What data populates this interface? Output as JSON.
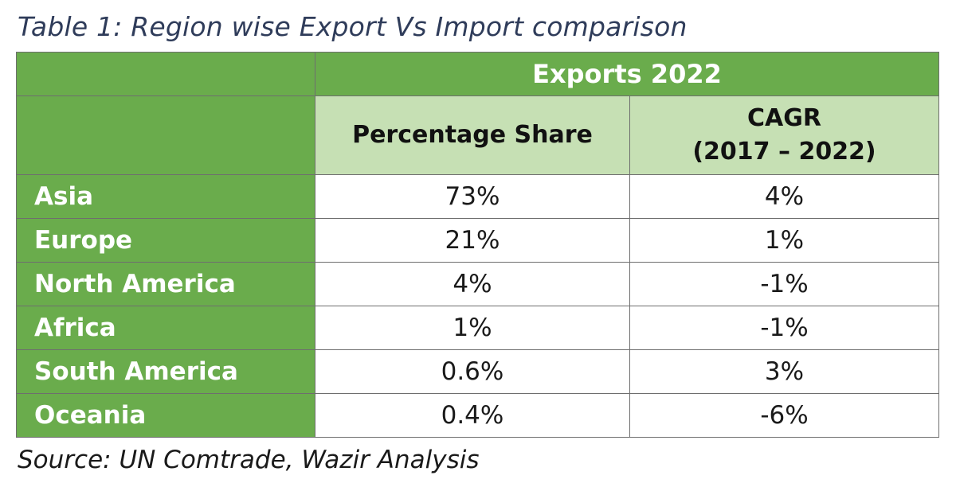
{
  "caption": "Table 1: Region wise Export Vs Import comparison",
  "table": {
    "group_header": "Exports 2022",
    "columns": {
      "share": "Percentage Share",
      "cagr_line1": "CAGR",
      "cagr_line2": "(2017 – 2022)"
    },
    "rows": [
      {
        "region": "Asia",
        "share": "73%",
        "cagr": "4%"
      },
      {
        "region": "Europe",
        "share": "21%",
        "cagr": "1%"
      },
      {
        "region": "North America",
        "share": "4%",
        "cagr": "-1%"
      },
      {
        "region": "Africa",
        "share": "1%",
        "cagr": "-1%"
      },
      {
        "region": "South America",
        "share": "0.6%",
        "cagr": "3%"
      },
      {
        "region": "Oceania",
        "share": "0.4%",
        "cagr": "-6%"
      }
    ]
  },
  "source": "Source: UN Comtrade, Wazir Analysis",
  "colors": {
    "header_green": "#6aac4c",
    "subheader_light_green": "#c6e0b4",
    "caption_text": "#2f3c5a"
  }
}
